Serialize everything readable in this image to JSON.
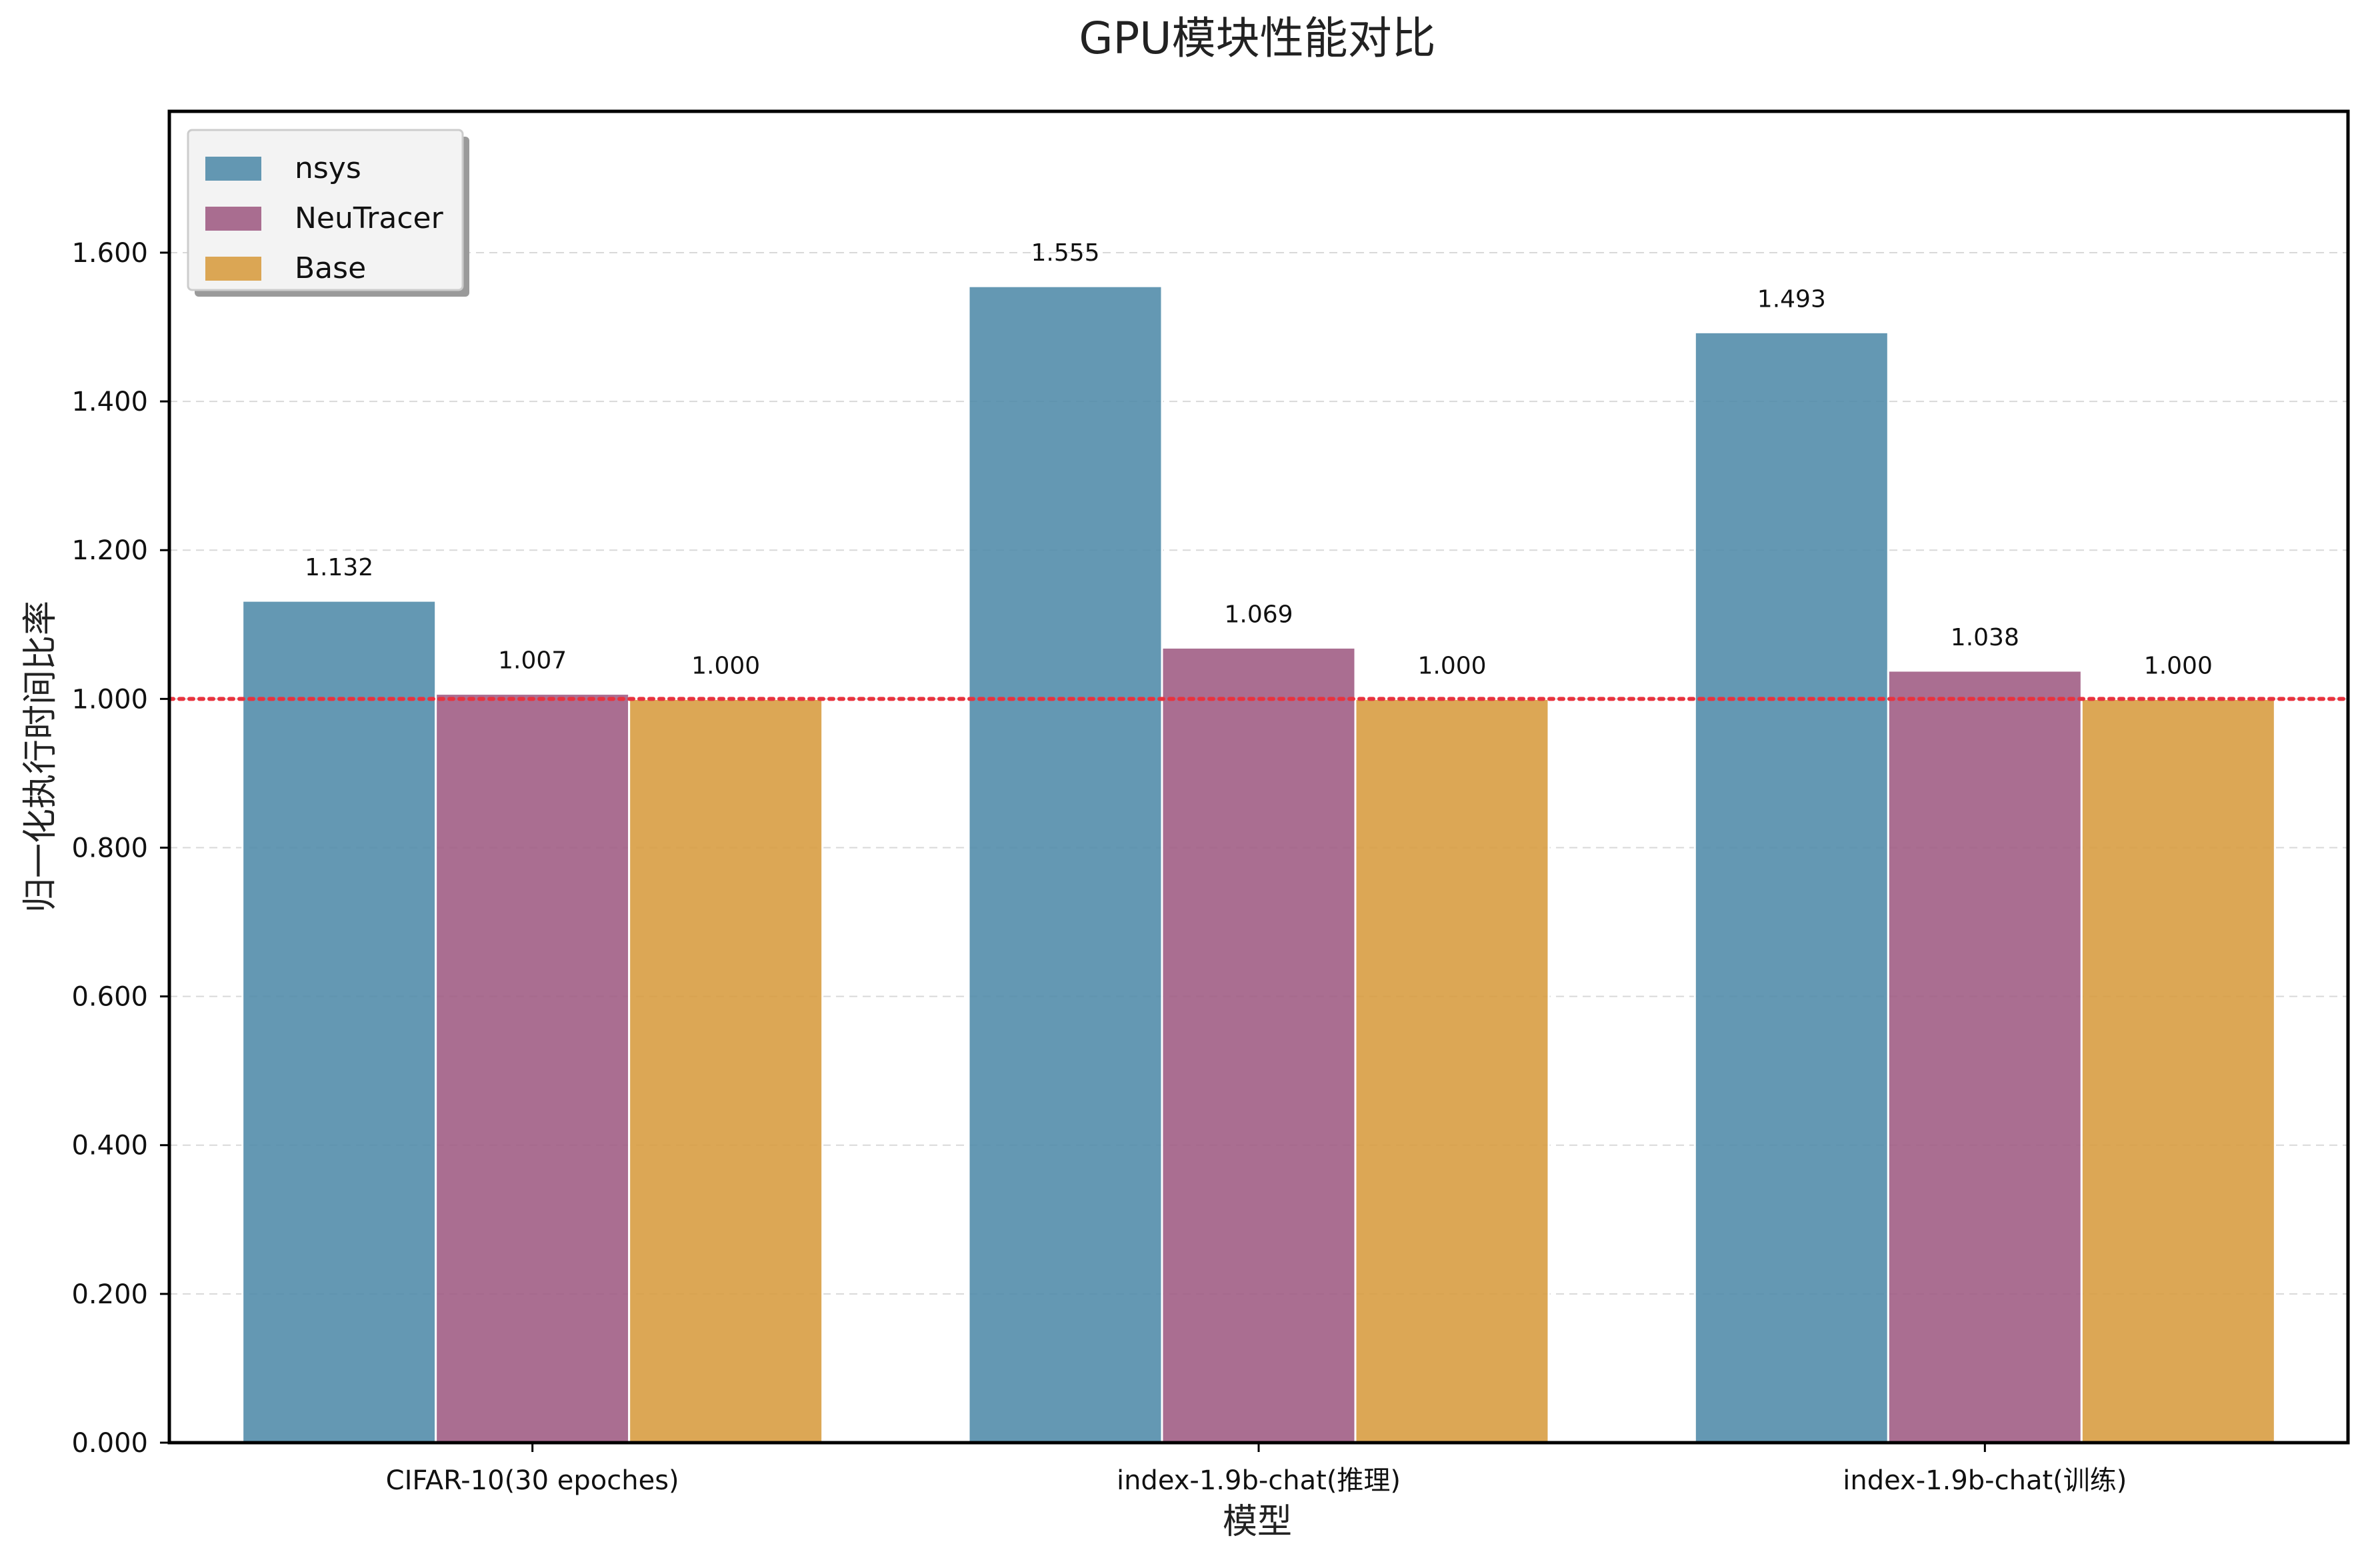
{
  "chart_data": {
    "type": "bar",
    "title": "GPU模块性能对比",
    "xlabel": "模型",
    "ylabel": "归一化执行时间比率",
    "categories": [
      "CIFAR-10(30 epoches)",
      "index-1.9b-chat(推理)",
      "index-1.9b-chat(训练)"
    ],
    "series": [
      {
        "name": "nsys",
        "color": "#4f8aa8",
        "values": [
          1.132,
          1.555,
          1.493
        ],
        "labels": [
          "1.132",
          "1.555",
          "1.493"
        ]
      },
      {
        "name": "NeuTracer",
        "color": "#9e5a82",
        "values": [
          1.007,
          1.069,
          1.038
        ],
        "labels": [
          "1.007",
          "1.069",
          "1.038"
        ]
      },
      {
        "name": "Base",
        "color": "#d79b3e",
        "values": [
          1.0,
          1.0,
          1.0
        ],
        "labels": [
          "1.000",
          "1.000",
          "1.000"
        ]
      }
    ],
    "ylim": [
      0,
      1.79
    ],
    "yticks": [
      0,
      0.2,
      0.4,
      0.6,
      0.8,
      1.0,
      1.2,
      1.4,
      1.6
    ],
    "ytick_labels": [
      "0.000",
      "0.200",
      "0.400",
      "0.600",
      "0.800",
      "1.000",
      "1.200",
      "1.400",
      "1.600"
    ],
    "reference_line": {
      "y": 1.0,
      "color": "#e8333e",
      "style": "dotted"
    },
    "grid": "y-dashed",
    "legend_position": "top-left"
  }
}
